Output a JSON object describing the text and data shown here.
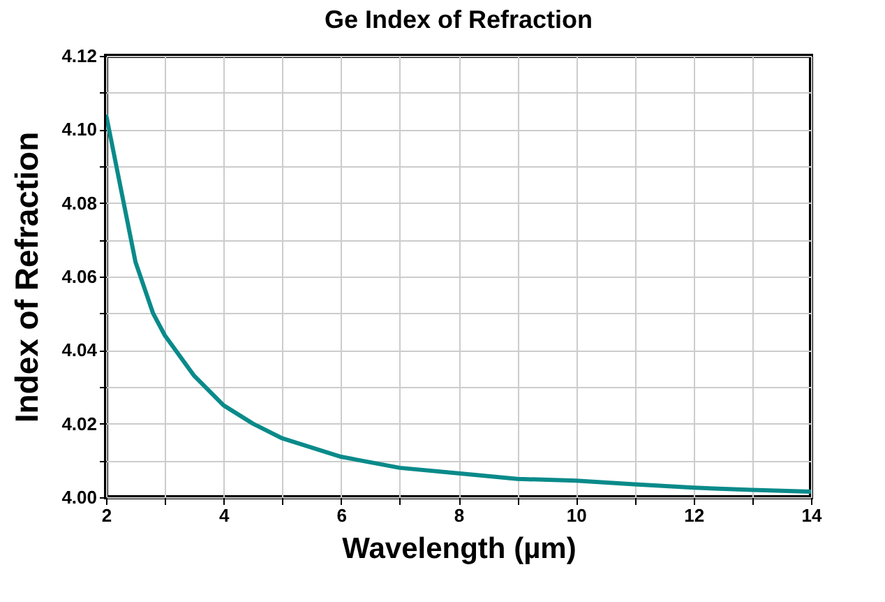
{
  "chart_data": {
    "type": "line",
    "title": "Ge Index of Refraction",
    "xlabel": "Wavelength (µm)",
    "ylabel": "Index of Refraction",
    "x": [
      2,
      2.2,
      2.5,
      2.8,
      3,
      3.5,
      4,
      4.5,
      5,
      6,
      7,
      8,
      9,
      10,
      11,
      12,
      13,
      14
    ],
    "series": [
      {
        "color": "#0a8a8a",
        "values": [
          4.104,
          4.088,
          4.064,
          4.05,
          4.044,
          4.033,
          4.025,
          4.02,
          4.016,
          4.011,
          4.008,
          4.0065,
          4.005,
          4.0045,
          4.0035,
          4.0026,
          4.002,
          4.0015
        ]
      }
    ],
    "xlim": [
      2,
      14
    ],
    "xticks": [
      2,
      {
        "value": 3,
        "label": null
      },
      4,
      {
        "value": 5,
        "label": null
      },
      6,
      {
        "value": 7,
        "label": null
      },
      8,
      {
        "value": 9,
        "label": null
      },
      10,
      {
        "value": 11,
        "label": null
      },
      12,
      {
        "value": 13,
        "label": null
      },
      14
    ],
    "ylim": [
      4.0,
      4.12
    ],
    "yticks": [
      {
        "value": 4.0,
        "label": "4.00"
      },
      {
        "value": 4.01,
        "label": null
      },
      {
        "value": 4.02,
        "label": "4.02"
      },
      {
        "value": 4.03,
        "label": null
      },
      {
        "value": 4.04,
        "label": "4.04"
      },
      {
        "value": 4.05,
        "label": null
      },
      {
        "value": 4.06,
        "label": "4.06"
      },
      {
        "value": 4.07,
        "label": null
      },
      {
        "value": 4.08,
        "label": "4.08"
      },
      {
        "value": 4.09,
        "label": null
      },
      {
        "value": 4.1,
        "label": "4.10"
      },
      {
        "value": 4.11,
        "label": null
      },
      {
        "value": 4.12,
        "label": "4.12"
      }
    ],
    "grid": true,
    "marker": "none",
    "line_style": "solid"
  }
}
